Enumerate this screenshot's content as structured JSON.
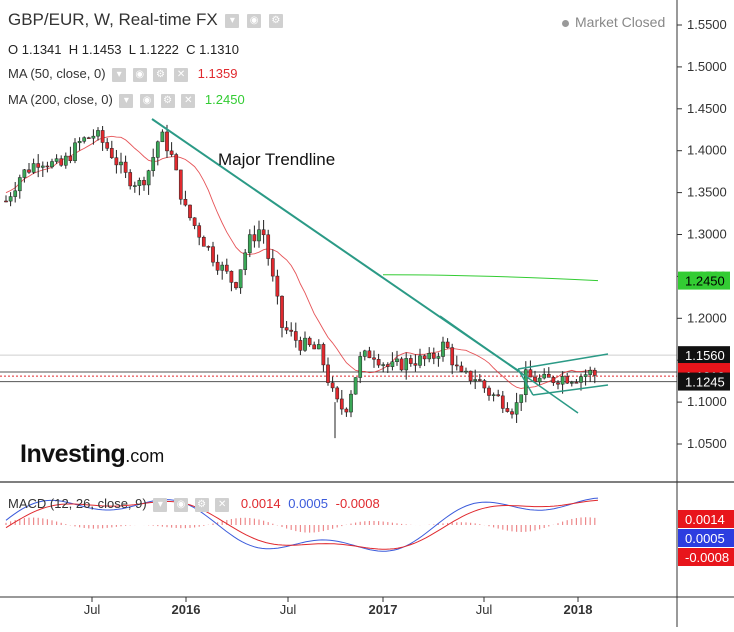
{
  "header": {
    "title": "GBP/EUR, W, Real-time FX",
    "market_status": "Market Closed",
    "ohlc": {
      "o_label": "O",
      "o": "1.1341",
      "h_label": "H",
      "h": "1.1453",
      "l_label": "L",
      "l": "1.1222",
      "c_label": "C",
      "c": "1.1310"
    },
    "ma50": {
      "label": "MA (50, close, 0)",
      "value": "1.1359"
    },
    "ma200": {
      "label": "MA (200, close, 0)",
      "value": "1.2450"
    },
    "macd": {
      "label": "MACD (12, 26, close, 9)",
      "v1": "0.0014",
      "v2": "0.0005",
      "v3": "-0.0008"
    }
  },
  "annotation": "Major Trendline",
  "logo": {
    "main": "Investing",
    "domain": ".com"
  },
  "colors": {
    "up": "#3aa757",
    "down": "#e0292e",
    "ma50": "#e0292e",
    "ma200": "#33cc33",
    "trendline": "#2b9a86",
    "macd": "#3b5bdb",
    "signal": "#e0292e",
    "axis": "#444444"
  },
  "chart_data": [
    {
      "type": "candlestick",
      "title": "GBP/EUR, W, Real-time FX",
      "x_tick_labels": [
        "Jul",
        "2016",
        "Jul",
        "2017",
        "Jul",
        "2018"
      ],
      "y_ticks": [
        "1.5500",
        "1.5000",
        "1.4500",
        "1.4000",
        "1.3500",
        "1.3000",
        "1.2500",
        "1.2000",
        "1.1500",
        "1.1000",
        "1.0500"
      ],
      "ylim": [
        1.0,
        1.57
      ],
      "price_tags": [
        {
          "value": "1.2450",
          "color": "green"
        },
        {
          "value": "1.1560",
          "color": "black"
        },
        {
          "value": "1.1359",
          "color": "red"
        },
        {
          "value": "1.1310",
          "color": "red"
        },
        {
          "value": "1.1245",
          "color": "black"
        }
      ],
      "series": [
        {
          "name": "MA (50, close, 0)",
          "color": "red"
        },
        {
          "name": "MA (200, close, 0)",
          "color": "green"
        }
      ]
    },
    {
      "type": "line",
      "title": "MACD (12, 26, close, 9)",
      "value_tags": [
        {
          "value": "0.0014",
          "color": "red"
        },
        {
          "value": "0.0005",
          "color": "blue"
        },
        {
          "value": "-0.0008",
          "color": "red"
        }
      ]
    }
  ]
}
